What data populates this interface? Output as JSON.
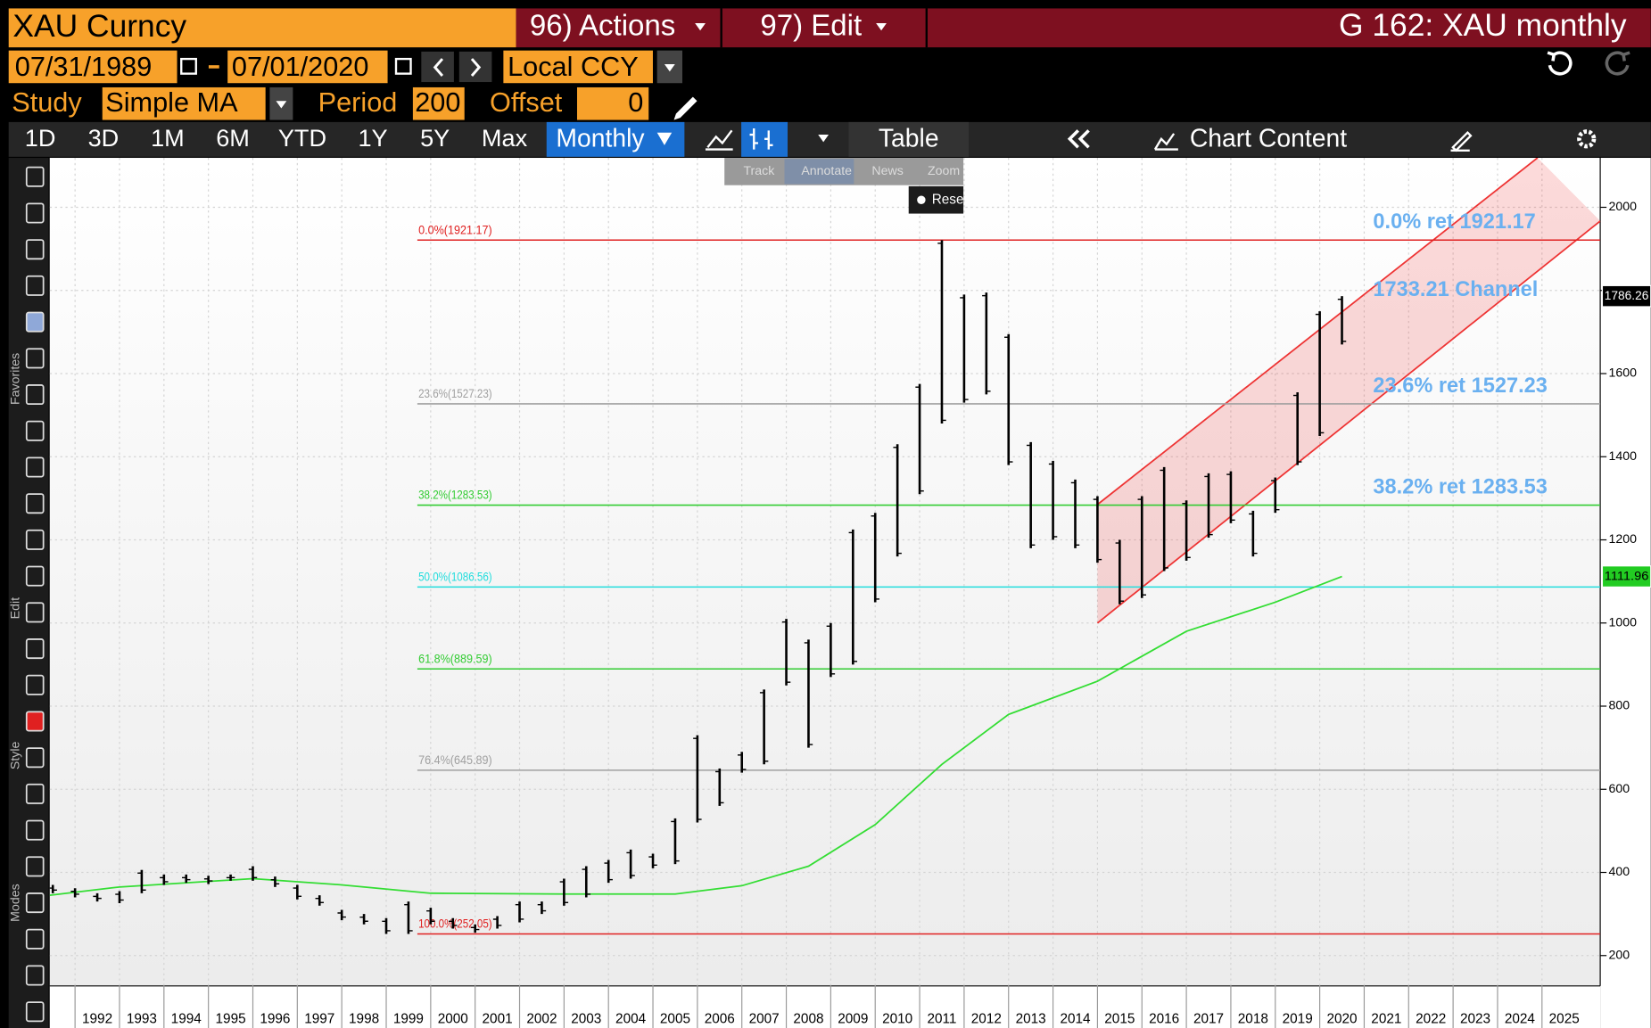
{
  "header": {
    "security": "XAU Curncy",
    "actions": "96) Actions",
    "edit": "97) Edit",
    "title": "G 162: XAU monthly"
  },
  "controls": {
    "start_date": "07/31/1989",
    "end_date": "07/01/2020",
    "currency": "Local CCY",
    "study_label": "Study",
    "study": "Simple MA",
    "period_label": "Period",
    "period": 200,
    "offset_label": "Offset",
    "offset": 0,
    "ranges": [
      "1D",
      "3D",
      "1M",
      "6M",
      "YTD",
      "1Y",
      "5Y",
      "Max"
    ],
    "frequency": "Monthly",
    "table": "Table",
    "chart_content": "Chart Content",
    "tools": [
      "Track",
      "Annotate",
      "News",
      "Zoom"
    ],
    "reset": "Reset",
    "side_groups": [
      "Favorites",
      "Edit",
      "Style",
      "Modes"
    ]
  },
  "chart_data": {
    "type": "ohlc",
    "x": [
      1991.5,
      1992,
      1992.5,
      1993,
      1993.5,
      1994,
      1994.5,
      1995,
      1995.5,
      1996,
      1996.5,
      1997,
      1997.5,
      1998,
      1998.5,
      1999,
      1999.5,
      2000,
      2000.5,
      2001,
      2001.5,
      2002,
      2002.5,
      2003,
      2003.5,
      2004,
      2004.5,
      2005,
      2005.5,
      2006,
      2006.5,
      2007,
      2007.5,
      2008,
      2008.5,
      2009,
      2009.5,
      2010,
      2010.5,
      2011,
      2011.5,
      2012,
      2012.5,
      2013,
      2013.5,
      2014,
      2014.5,
      2015,
      2015.5,
      2016,
      2016.5,
      2017,
      2017.5,
      2018,
      2018.5,
      2019,
      2019.5,
      2020,
      2020.5
    ],
    "high": [
      370,
      362,
      350,
      355,
      406,
      395,
      395,
      392,
      395,
      415,
      390,
      370,
      345,
      310,
      300,
      290,
      330,
      315,
      290,
      275,
      295,
      330,
      330,
      385,
      415,
      430,
      455,
      445,
      530,
      730,
      650,
      690,
      840,
      1010,
      960,
      1000,
      1225,
      1265,
      1430,
      1575,
      1921,
      1790,
      1795,
      1695,
      1435,
      1390,
      1345,
      1305,
      1200,
      1305,
      1375,
      1295,
      1360,
      1365,
      1270,
      1350,
      1555,
      1750,
      1786.26
    ],
    "low": [
      350,
      340,
      330,
      326,
      350,
      370,
      375,
      372,
      380,
      380,
      365,
      335,
      320,
      285,
      275,
      252,
      252,
      275,
      265,
      255,
      265,
      280,
      300,
      320,
      340,
      375,
      385,
      410,
      420,
      520,
      560,
      640,
      660,
      850,
      700,
      870,
      900,
      1050,
      1160,
      1310,
      1480,
      1530,
      1550,
      1380,
      1180,
      1200,
      1180,
      1145,
      1045,
      1060,
      1125,
      1150,
      1205,
      1240,
      1160,
      1265,
      1380,
      1450,
      1670
    ],
    "color": "#000000",
    "ma": {
      "x": [
        1991.43,
        1993,
        1996,
        1998,
        2000,
        2003,
        2005.5,
        2007,
        2008.5,
        2010,
        2011.5,
        2013,
        2015,
        2017,
        2019,
        2020.5
      ],
      "values": [
        345,
        365,
        385,
        370,
        350,
        348,
        348,
        368,
        415,
        515,
        660,
        780,
        860,
        980,
        1050,
        1111.96
      ],
      "color": "#33dd33"
    },
    "fib_start": 1999.7,
    "fib_levels": [
      {
        "label": "0.0%(1921.17)",
        "value": 1921.17,
        "color": "#e02020"
      },
      {
        "label": "23.6%(1527.23)",
        "value": 1527.23,
        "color": "#a0a0a0"
      },
      {
        "label": "38.2%(1283.53)",
        "value": 1283.53,
        "color": "#33cc33"
      },
      {
        "label": "50.0%(1086.56)",
        "value": 1086.56,
        "color": "#22dddd"
      },
      {
        "label": "61.8%(889.59)",
        "value": 889.59,
        "color": "#33cc33"
      },
      {
        "label": "76.4%(645.89)",
        "value": 645.89,
        "color": "#a0a0a0"
      },
      {
        "label": "100.0%(252.05)",
        "value": 252.05,
        "color": "#e02020"
      }
    ],
    "channel": {
      "upper_x": [
        2015,
        2024.9
      ],
      "upper": [
        1285,
        2119
      ],
      "lower_x": [
        2015,
        2026.31
      ],
      "lower": [
        1000,
        1967
      ],
      "color": "#ee3333"
    },
    "annotations": [
      {
        "text": "0.0% ret 1921.17",
        "x": 2021.2,
        "y": 1963
      },
      {
        "text": "1733.21 Channel",
        "x": 2021.2,
        "y": 1800
      },
      {
        "text": "23.6% ret 1527.23",
        "x": 2021.2,
        "y": 1568
      },
      {
        "text": "38.2% ret 1283.53",
        "x": 2021.2,
        "y": 1325
      }
    ],
    "xlim": [
      1991.43,
      2026.31
    ],
    "ylim": [
      127,
      2119
    ],
    "yticks": [
      200,
      400,
      600,
      800,
      1000,
      1200,
      1400,
      1600,
      1800,
      2000
    ],
    "xticks": [
      1992,
      1993,
      1994,
      1995,
      1996,
      1997,
      1998,
      1999,
      2000,
      2001,
      2002,
      2003,
      2004,
      2005,
      2006,
      2007,
      2008,
      2009,
      2010,
      2011,
      2012,
      2013,
      2014,
      2015,
      2016,
      2017,
      2018,
      2019,
      2020,
      2021,
      2022,
      2023,
      2024,
      2025
    ],
    "grid": true
  }
}
